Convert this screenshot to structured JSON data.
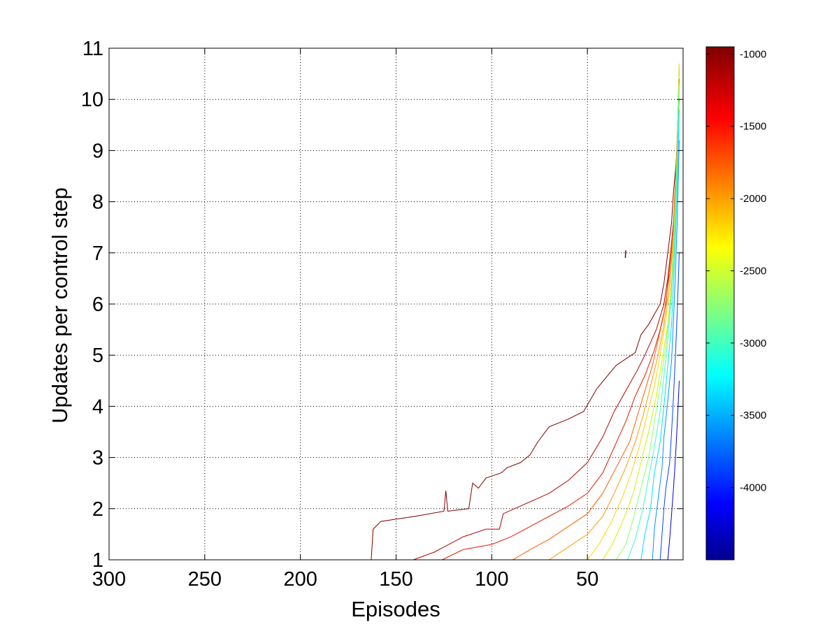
{
  "chart_data": {
    "type": "contour",
    "xlabel": "Episodes",
    "ylabel": "Updates per control step",
    "x_direction": "reversed",
    "xlim": [
      300,
      0
    ],
    "ylim": [
      1,
      11
    ],
    "x_ticks": [
      300,
      250,
      200,
      150,
      100,
      50
    ],
    "y_ticks": [
      1,
      2,
      3,
      4,
      5,
      6,
      7,
      8,
      9,
      10,
      11
    ],
    "grid": true,
    "grid_style": "dotted",
    "colormap": "jet",
    "colorbar": {
      "position": "right",
      "range": [
        -4500,
        -950
      ],
      "ticks": [
        -1000,
        -1500,
        -2000,
        -2500,
        -3000,
        -3500,
        -4000
      ]
    },
    "contour_levels": [
      {
        "level": -1000,
        "color": "#800000",
        "points": [
          [
            163,
            1
          ],
          [
            162,
            1.6
          ],
          [
            158,
            1.75
          ],
          [
            140,
            1.85
          ],
          [
            125,
            1.95
          ],
          [
            124,
            2.35
          ],
          [
            123,
            1.95
          ],
          [
            112,
            2.0
          ],
          [
            110,
            2.5
          ],
          [
            107,
            2.4
          ],
          [
            103,
            2.6
          ],
          [
            95,
            2.7
          ],
          [
            92,
            2.8
          ],
          [
            85,
            2.9
          ],
          [
            80,
            3.05
          ],
          [
            76,
            3.3
          ],
          [
            70,
            3.6
          ],
          [
            60,
            3.75
          ],
          [
            52,
            3.9
          ],
          [
            45,
            4.35
          ],
          [
            35,
            4.8
          ],
          [
            25,
            5.05
          ],
          [
            22,
            5.4
          ],
          [
            18,
            5.6
          ],
          [
            12,
            6.0
          ],
          [
            10,
            6.4
          ],
          [
            8,
            7.0
          ],
          [
            6,
            7.6
          ],
          [
            5,
            8.2
          ],
          [
            4,
            8.6
          ],
          [
            3,
            9.1
          ],
          [
            2,
            10
          ]
        ]
      },
      {
        "level": -1250,
        "color": "#b20000",
        "points": [
          [
            141,
            1
          ],
          [
            130,
            1.15
          ],
          [
            115,
            1.45
          ],
          [
            103,
            1.6
          ],
          [
            96,
            1.6
          ],
          [
            94,
            1.9
          ],
          [
            85,
            2.05
          ],
          [
            70,
            2.3
          ],
          [
            60,
            2.55
          ],
          [
            50,
            2.9
          ],
          [
            42,
            3.4
          ],
          [
            36,
            3.9
          ],
          [
            30,
            4.3
          ],
          [
            24,
            4.7
          ],
          [
            20,
            5.0
          ],
          [
            14,
            5.5
          ],
          [
            10,
            6.0
          ],
          [
            8,
            6.5
          ],
          [
            6,
            7.2
          ],
          [
            4,
            8.0
          ],
          [
            3,
            9.0
          ],
          [
            2,
            10.4
          ]
        ]
      },
      {
        "level": -1500,
        "color": "#e21a00",
        "points": [
          [
            126,
            1
          ],
          [
            115,
            1.2
          ],
          [
            100,
            1.3
          ],
          [
            90,
            1.45
          ],
          [
            80,
            1.65
          ],
          [
            70,
            1.85
          ],
          [
            60,
            2.05
          ],
          [
            50,
            2.3
          ],
          [
            42,
            2.7
          ],
          [
            36,
            3.2
          ],
          [
            30,
            3.7
          ],
          [
            25,
            4.2
          ],
          [
            20,
            4.6
          ],
          [
            15,
            5.1
          ],
          [
            12,
            5.5
          ],
          [
            9,
            6.0
          ],
          [
            7,
            6.8
          ],
          [
            5,
            7.6
          ],
          [
            4,
            8.4
          ],
          [
            3,
            9.3
          ],
          [
            2,
            10.6
          ]
        ]
      },
      {
        "level": -1750,
        "color": "#ff5a00",
        "points": [
          [
            89,
            1
          ],
          [
            80,
            1.2
          ],
          [
            70,
            1.4
          ],
          [
            60,
            1.65
          ],
          [
            50,
            1.9
          ],
          [
            42,
            2.3
          ],
          [
            35,
            2.8
          ],
          [
            28,
            3.3
          ],
          [
            24,
            3.8
          ],
          [
            20,
            4.3
          ],
          [
            16,
            4.8
          ],
          [
            13,
            5.3
          ],
          [
            10,
            5.8
          ],
          [
            7,
            6.6
          ],
          [
            5,
            7.5
          ],
          [
            4,
            8.3
          ],
          [
            3,
            9.3
          ],
          [
            2,
            10.7
          ]
        ]
      },
      {
        "level": -2000,
        "color": "#ff9a00",
        "points": [
          [
            70,
            1
          ],
          [
            60,
            1.25
          ],
          [
            50,
            1.5
          ],
          [
            42,
            1.85
          ],
          [
            36,
            2.3
          ],
          [
            30,
            2.8
          ],
          [
            25,
            3.3
          ],
          [
            21,
            3.8
          ],
          [
            17,
            4.4
          ],
          [
            13,
            5.0
          ],
          [
            10,
            5.6
          ],
          [
            7,
            6.4
          ],
          [
            5,
            7.3
          ],
          [
            4,
            8.2
          ],
          [
            3,
            9.2
          ],
          [
            2,
            10.7
          ]
        ]
      },
      {
        "level": -2250,
        "color": "#ffd400",
        "points": [
          [
            50,
            1
          ],
          [
            44,
            1.3
          ],
          [
            38,
            1.7
          ],
          [
            32,
            2.2
          ],
          [
            27,
            2.7
          ],
          [
            23,
            3.2
          ],
          [
            19,
            3.8
          ],
          [
            15,
            4.4
          ],
          [
            12,
            5.0
          ],
          [
            9,
            5.7
          ],
          [
            6,
            6.5
          ],
          [
            5,
            7.2
          ],
          [
            4,
            8.1
          ],
          [
            3,
            9.1
          ],
          [
            2,
            10.7
          ]
        ]
      },
      {
        "level": -2500,
        "color": "#d4f000",
        "points": [
          [
            42,
            1
          ],
          [
            37,
            1.3
          ],
          [
            31,
            1.8
          ],
          [
            26,
            2.3
          ],
          [
            22,
            2.9
          ],
          [
            18,
            3.5
          ],
          [
            14,
            4.2
          ],
          [
            11,
            4.9
          ],
          [
            8,
            5.6
          ],
          [
            6,
            6.4
          ],
          [
            5,
            7.2
          ],
          [
            4,
            8.1
          ],
          [
            3,
            9.1
          ],
          [
            2,
            10.7
          ]
        ]
      },
      {
        "level": -2750,
        "color": "#8cff6a",
        "points": [
          [
            35,
            1
          ],
          [
            30,
            1.3
          ],
          [
            26,
            1.8
          ],
          [
            22,
            2.4
          ],
          [
            18,
            3.0
          ],
          [
            15,
            3.7
          ],
          [
            12,
            4.4
          ],
          [
            9,
            5.2
          ],
          [
            7,
            5.9
          ],
          [
            5,
            6.7
          ],
          [
            4,
            7.6
          ],
          [
            3,
            8.6
          ],
          [
            2,
            10.2
          ]
        ]
      },
      {
        "level": -3000,
        "color": "#3cffc0",
        "points": [
          [
            29,
            1
          ],
          [
            25,
            1.4
          ],
          [
            21,
            2.0
          ],
          [
            18,
            2.6
          ],
          [
            15,
            3.2
          ],
          [
            12,
            3.9
          ],
          [
            10,
            4.6
          ],
          [
            8,
            5.3
          ],
          [
            6,
            6.2
          ],
          [
            5,
            7.0
          ],
          [
            4,
            7.9
          ],
          [
            3,
            8.9
          ],
          [
            2,
            10.3
          ]
        ]
      },
      {
        "level": -3250,
        "color": "#00e0ff",
        "points": [
          [
            22,
            1
          ],
          [
            20,
            1.5
          ],
          [
            17,
            2.0
          ],
          [
            15,
            2.7
          ],
          [
            12,
            3.3
          ],
          [
            10,
            4.0
          ],
          [
            8,
            4.8
          ],
          [
            6,
            5.6
          ],
          [
            5,
            6.4
          ],
          [
            4,
            7.3
          ],
          [
            3,
            8.4
          ],
          [
            2,
            9.8
          ]
        ]
      },
      {
        "level": -3500,
        "color": "#0094ff",
        "points": [
          [
            16,
            1
          ],
          [
            15,
            1.6
          ],
          [
            13,
            2.2
          ],
          [
            11,
            2.8
          ],
          [
            10,
            3.4
          ],
          [
            8,
            4.1
          ],
          [
            6,
            4.9
          ],
          [
            5,
            5.7
          ],
          [
            4,
            6.6
          ],
          [
            3,
            7.7
          ],
          [
            2,
            9.2
          ]
        ]
      },
      {
        "level": -3750,
        "color": "#0046ff",
        "points": [
          [
            12,
            1
          ],
          [
            11,
            1.5
          ],
          [
            10,
            2.0
          ],
          [
            9,
            2.4
          ],
          [
            7,
            2.9
          ],
          [
            6,
            3.5
          ],
          [
            5,
            4.2
          ],
          [
            4,
            5.0
          ],
          [
            3,
            5.9
          ],
          [
            2,
            7.0
          ]
        ]
      },
      {
        "level": -4000,
        "color": "#0000d8",
        "points": [
          [
            8,
            1
          ],
          [
            7,
            1.4
          ],
          [
            6,
            1.9
          ],
          [
            5,
            2.4
          ],
          [
            4,
            3.0
          ],
          [
            3,
            3.7
          ],
          [
            2,
            4.5
          ]
        ]
      }
    ],
    "extra_marks": [
      {
        "level": -1000,
        "color": "#800000",
        "points": [
          [
            30.2,
            6.9
          ],
          [
            30.0,
            7.05
          ]
        ]
      }
    ]
  }
}
